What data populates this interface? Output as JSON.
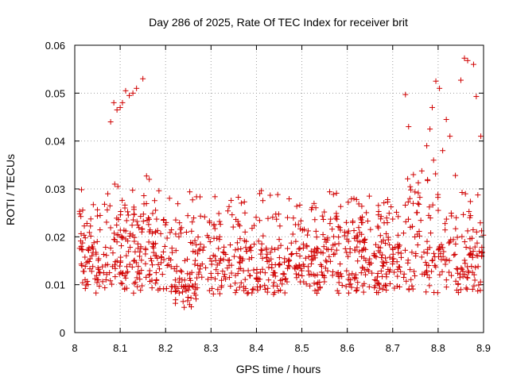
{
  "chart_data": {
    "type": "scatter",
    "title": "Day 286 of 2025, Rate Of TEC Index for receiver brit",
    "xlabel": "GPS time / hours",
    "ylabel": "ROTI / TECUs",
    "xlim": [
      8.0,
      8.9
    ],
    "ylim": [
      0,
      0.06
    ],
    "xticks": [
      "8",
      "8.1",
      "8.2",
      "8.3",
      "8.4",
      "8.5",
      "8.6",
      "8.7",
      "8.8",
      "8.9"
    ],
    "yticks": [
      "0",
      "0.01",
      "0.02",
      "0.03",
      "0.04",
      "0.05",
      "0.06"
    ],
    "grid": true,
    "marker": "+",
    "color": "#d00000",
    "series": [
      {
        "points": [
          [
            8.079,
            0.044
          ],
          [
            8.086,
            0.048
          ],
          [
            8.093,
            0.0465
          ],
          [
            8.1,
            0.047
          ],
          [
            8.105,
            0.048
          ],
          [
            8.112,
            0.0505
          ],
          [
            8.12,
            0.0495
          ],
          [
            8.128,
            0.05
          ],
          [
            8.136,
            0.051
          ],
          [
            8.15,
            0.053
          ],
          [
            8.158,
            0.0327
          ],
          [
            8.164,
            0.032
          ],
          [
            8.088,
            0.031
          ],
          [
            8.095,
            0.0305
          ],
          [
            8.728,
            0.0497
          ],
          [
            8.735,
            0.043
          ],
          [
            8.775,
            0.039
          ],
          [
            8.782,
            0.0425
          ],
          [
            8.787,
            0.047
          ],
          [
            8.795,
            0.0525
          ],
          [
            8.803,
            0.051
          ],
          [
            8.818,
            0.0445
          ],
          [
            8.826,
            0.041
          ],
          [
            8.838,
            0.0328
          ],
          [
            8.85,
            0.0527
          ],
          [
            8.858,
            0.0573
          ],
          [
            8.865,
            0.0568
          ],
          [
            8.878,
            0.056
          ],
          [
            8.884,
            0.0493
          ],
          [
            8.894,
            0.041
          ],
          [
            8.79,
            0.036
          ],
          [
            8.81,
            0.038
          ]
        ]
      }
    ]
  }
}
